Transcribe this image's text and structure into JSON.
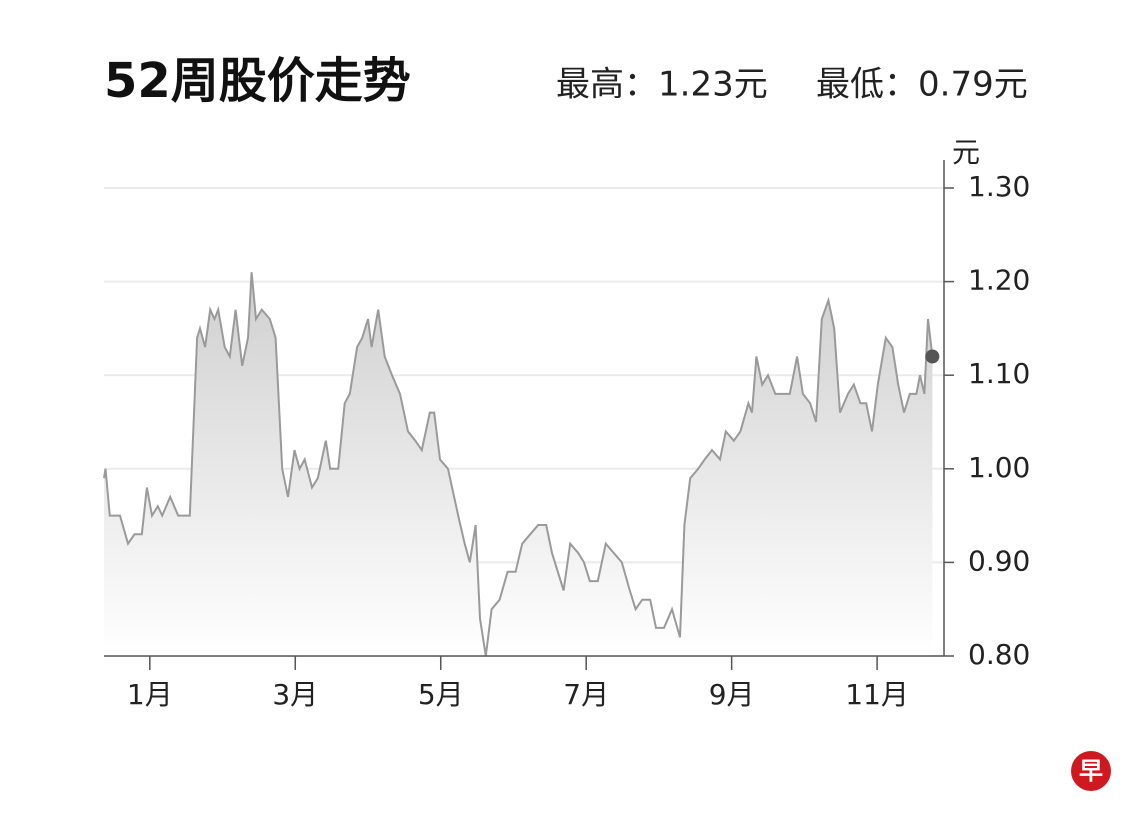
{
  "chart_data": {
    "type": "line",
    "title": "52周股价走势",
    "annotations": [
      "最高：1.23元",
      "最低：0.79元"
    ],
    "y_axis_label": "元",
    "logo": "早",
    "x": [
      0.37,
      0.39,
      0.45,
      0.59,
      0.7,
      0.79,
      0.89,
      0.96,
      1.03,
      1.11,
      1.17,
      1.28,
      1.39,
      1.55,
      1.65,
      1.69,
      1.76,
      1.83,
      1.89,
      1.94,
      2.03,
      2.1,
      2.18,
      2.27,
      2.35,
      2.4,
      2.46,
      2.54,
      2.65,
      2.73,
      2.82,
      2.9,
      2.99,
      3.06,
      3.13,
      3.23,
      3.31,
      3.42,
      3.48,
      3.59,
      3.68,
      3.75,
      3.85,
      3.92,
      4.0,
      4.05,
      4.14,
      4.23,
      4.33,
      4.44,
      4.55,
      4.65,
      4.74,
      4.85,
      4.91,
      4.99,
      5.1,
      5.24,
      5.33,
      5.4,
      5.48,
      5.54,
      5.62,
      5.7,
      5.81,
      5.92,
      6.03,
      6.12,
      6.23,
      6.34,
      6.45,
      6.53,
      6.61,
      6.69,
      6.78,
      6.89,
      6.97,
      7.05,
      7.16,
      7.27,
      7.38,
      7.49,
      7.6,
      7.68,
      7.77,
      7.88,
      7.96,
      8.07,
      8.18,
      8.29,
      8.35,
      8.43,
      8.54,
      8.63,
      8.73,
      8.84,
      8.92,
      9.03,
      9.12,
      9.23,
      9.28,
      9.34,
      9.42,
      9.5,
      9.6,
      9.8,
      9.9,
      9.98,
      10.08,
      10.16,
      10.24,
      10.33,
      10.41,
      10.49,
      10.6,
      10.68,
      10.77,
      10.85,
      10.93,
      11.01,
      11.12,
      11.21,
      11.29,
      11.37,
      11.45,
      11.54,
      11.59,
      11.65,
      11.7,
      11.76
    ],
    "series": [
      {
        "name": "股价",
        "color": "#9a9a9a",
        "values": [
          0.99,
          1.0,
          0.95,
          0.95,
          0.92,
          0.93,
          0.93,
          0.98,
          0.95,
          0.96,
          0.95,
          0.97,
          0.95,
          0.95,
          1.14,
          1.15,
          1.13,
          1.17,
          1.16,
          1.17,
          1.13,
          1.12,
          1.17,
          1.11,
          1.14,
          1.21,
          1.16,
          1.17,
          1.16,
          1.14,
          1.0,
          0.97,
          1.02,
          1.0,
          1.01,
          0.98,
          0.99,
          1.03,
          1.0,
          1.0,
          1.07,
          1.08,
          1.13,
          1.14,
          1.16,
          1.13,
          1.17,
          1.12,
          1.1,
          1.08,
          1.04,
          1.03,
          1.02,
          1.06,
          1.06,
          1.01,
          1.0,
          0.95,
          0.92,
          0.9,
          0.94,
          0.84,
          0.8,
          0.85,
          0.86,
          0.89,
          0.89,
          0.92,
          0.93,
          0.94,
          0.94,
          0.91,
          0.89,
          0.87,
          0.92,
          0.91,
          0.9,
          0.88,
          0.88,
          0.92,
          0.91,
          0.9,
          0.87,
          0.85,
          0.86,
          0.86,
          0.83,
          0.83,
          0.85,
          0.82,
          0.94,
          0.99,
          1.0,
          1.01,
          1.02,
          1.01,
          1.04,
          1.03,
          1.04,
          1.07,
          1.06,
          1.12,
          1.09,
          1.1,
          1.08,
          1.08,
          1.12,
          1.08,
          1.07,
          1.05,
          1.16,
          1.18,
          1.15,
          1.06,
          1.08,
          1.09,
          1.07,
          1.07,
          1.04,
          1.09,
          1.14,
          1.13,
          1.09,
          1.06,
          1.08,
          1.08,
          1.1,
          1.08,
          1.16,
          1.12
        ]
      }
    ],
    "xlim": [
      0.37,
      11.92
    ],
    "xticks": [
      {
        "value": 1,
        "label": "1月"
      },
      {
        "value": 3,
        "label": "3月"
      },
      {
        "value": 5,
        "label": "5月"
      },
      {
        "value": 7,
        "label": "7月"
      },
      {
        "value": 9,
        "label": "9月"
      },
      {
        "value": 11,
        "label": "11月"
      }
    ],
    "ylim": [
      0.8,
      1.3
    ],
    "yticks": [
      {
        "value": 0.8,
        "label": "0.80"
      },
      {
        "value": 0.9,
        "label": "0.90"
      },
      {
        "value": 1.0,
        "label": "1.00"
      },
      {
        "value": 1.1,
        "label": "1.10"
      },
      {
        "value": 1.2,
        "label": "1.20"
      },
      {
        "value": 1.3,
        "label": "1.30"
      }
    ],
    "grid": true
  }
}
